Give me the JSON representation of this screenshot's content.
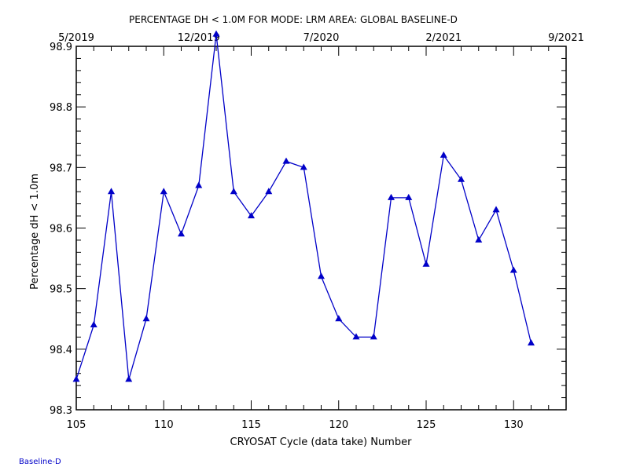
{
  "chart_data": {
    "type": "line",
    "title": "PERCENTAGE DH < 1.0M FOR MODE: LRM AREA: GLOBAL BASELINE-D",
    "xlabel": "CRYOSAT Cycle (data take) Number",
    "ylabel": "Percentage dH < 1.0m",
    "xlim": [
      105,
      133
    ],
    "ylim": [
      98.3,
      98.9
    ],
    "x_ticks": [
      105,
      110,
      115,
      120,
      125,
      130
    ],
    "y_ticks": [
      98.3,
      98.4,
      98.5,
      98.6,
      98.7,
      98.8,
      98.9
    ],
    "top_axis_ticks": [
      "5/2019",
      "12/2019",
      "7/2020",
      "2/2021",
      "9/2021"
    ],
    "grid": false,
    "series": [
      {
        "marker": "triangle",
        "color": "#0000c8",
        "x": [
          105,
          106,
          107,
          108,
          109,
          110,
          111,
          112,
          113,
          114,
          115,
          116,
          117,
          118,
          119,
          120,
          121,
          122,
          123,
          124,
          125,
          126,
          127,
          128,
          129,
          130,
          131
        ],
        "values": [
          98.35,
          98.44,
          98.66,
          98.35,
          98.45,
          98.66,
          98.59,
          98.67,
          98.92,
          98.66,
          98.62,
          98.66,
          98.71,
          98.7,
          98.52,
          98.45,
          98.42,
          98.42,
          98.65,
          98.65,
          98.54,
          98.72,
          98.68,
          98.58,
          98.63,
          98.53,
          98.41
        ]
      }
    ]
  },
  "footer": {
    "label": "Baseline-D",
    "color": "#0000c8"
  }
}
